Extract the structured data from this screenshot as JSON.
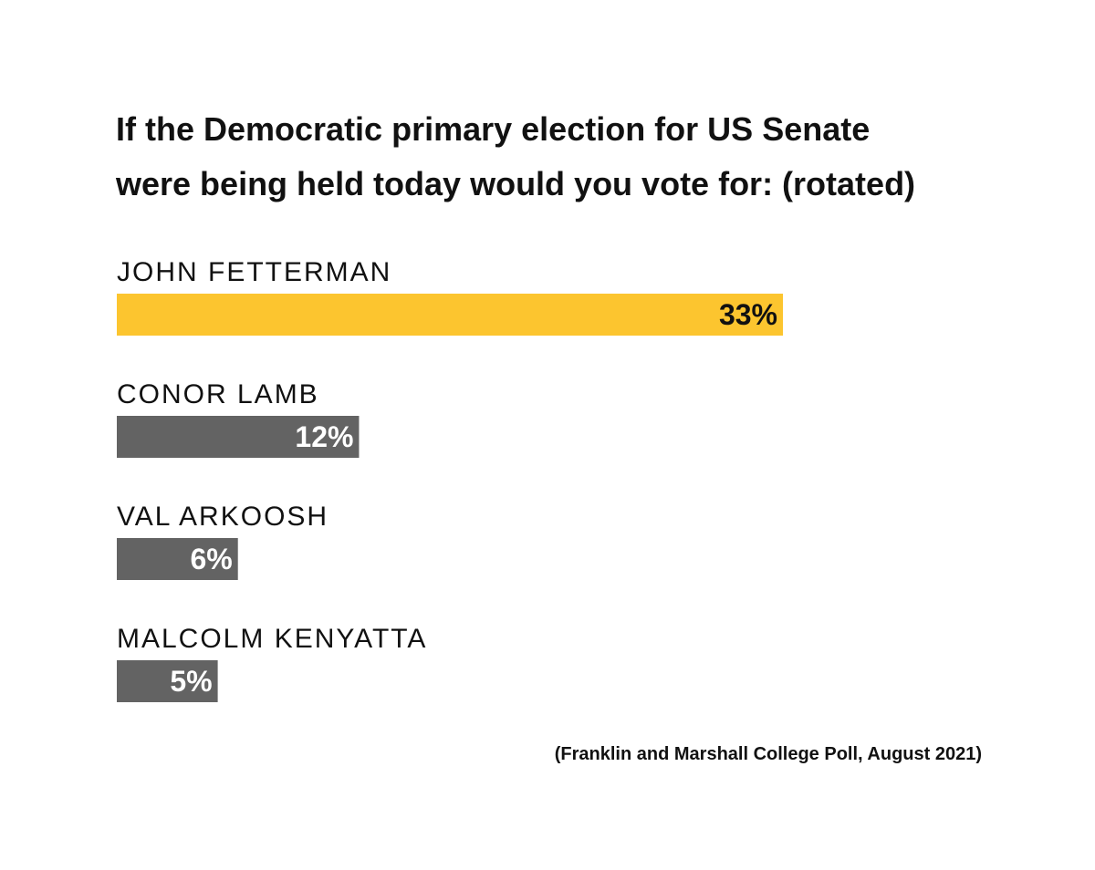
{
  "chart_data": {
    "type": "bar",
    "orientation": "horizontal",
    "title_lines": [
      "If the Democratic primary election for US Senate",
      "were being held today would you vote for: (rotated)"
    ],
    "categories": [
      "JOHN FETTERMAN",
      "CONOR LAMB",
      "VAL ARKOOSH",
      "MALCOLM KENYATTA"
    ],
    "values": [
      33,
      12,
      6,
      5
    ],
    "value_labels": [
      "33%",
      "12%",
      "6%",
      "5%"
    ],
    "unit": "%",
    "colors": [
      "#fcc52f",
      "#636363",
      "#636363",
      "#636363"
    ],
    "label_colors": [
      "#111111",
      "#ffffff",
      "#ffffff",
      "#ffffff"
    ],
    "xlim": [
      0,
      33
    ],
    "grid": false,
    "legend": "none",
    "source": "(Franklin and Marshall College Poll, August 2021)"
  }
}
